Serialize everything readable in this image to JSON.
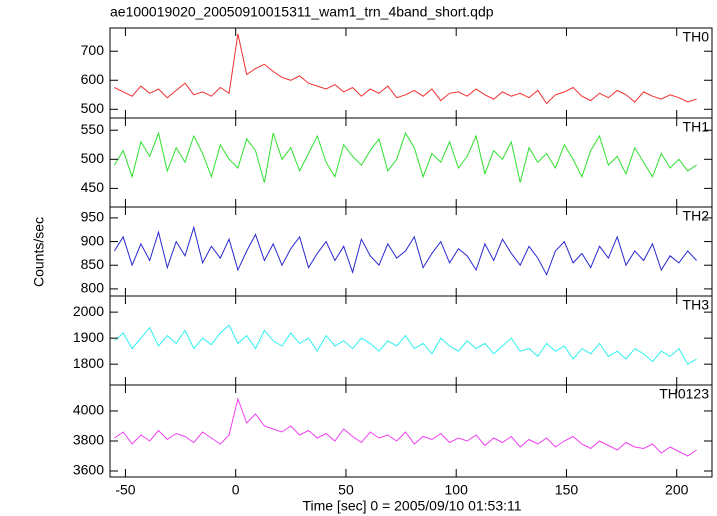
{
  "title": "ae100019020_20050910015311_wam1_trn_4band_short.qdp",
  "xlabel": "Time [sec] 0 = 2005/09/10 01:53:11",
  "ylabel": "Counts/sec",
  "x": [
    -55,
    -51,
    -47,
    -43,
    -39,
    -35,
    -31,
    -27,
    -23,
    -19,
    -15,
    -11,
    -7,
    -3,
    1,
    5,
    9,
    13,
    17,
    21,
    25,
    29,
    33,
    37,
    41,
    45,
    49,
    53,
    57,
    61,
    65,
    69,
    73,
    77,
    81,
    85,
    89,
    93,
    97,
    101,
    105,
    109,
    113,
    117,
    121,
    125,
    129,
    133,
    137,
    141,
    145,
    149,
    153,
    157,
    161,
    165,
    169,
    173,
    177,
    181,
    185,
    189,
    193,
    197,
    201,
    205,
    209
  ],
  "xlim": [
    -57,
    216
  ],
  "xticks": [
    -50,
    0,
    50,
    100,
    150,
    200
  ],
  "chart_data": [
    {
      "type": "line",
      "label": "TH0",
      "color": "#f03030",
      "ylim": [
        470,
        780
      ],
      "yticks": [
        500,
        600,
        700
      ],
      "values": [
        575,
        560,
        545,
        580,
        555,
        570,
        540,
        565,
        590,
        550,
        560,
        545,
        575,
        555,
        760,
        620,
        640,
        655,
        630,
        610,
        600,
        615,
        590,
        580,
        570,
        585,
        560,
        575,
        545,
        570,
        555,
        580,
        540,
        550,
        565,
        545,
        570,
        530,
        555,
        560,
        545,
        570,
        550,
        535,
        560,
        545,
        555,
        540,
        565,
        520,
        550,
        560,
        575,
        545,
        530,
        555,
        540,
        565,
        550,
        525,
        560,
        545,
        535,
        550,
        540,
        525,
        535
      ]
    },
    {
      "type": "line",
      "label": "TH1",
      "color": "#30e030",
      "ylim": [
        418,
        571
      ],
      "yticks": [
        450,
        500,
        550
      ],
      "values": [
        490,
        515,
        470,
        530,
        505,
        545,
        480,
        520,
        495,
        540,
        510,
        470,
        525,
        500,
        485,
        535,
        515,
        460,
        545,
        500,
        520,
        480,
        510,
        540,
        495,
        470,
        525,
        505,
        490,
        515,
        535,
        480,
        500,
        545,
        520,
        470,
        510,
        495,
        530,
        485,
        505,
        540,
        475,
        515,
        500,
        530,
        460,
        520,
        495,
        510,
        485,
        525,
        500,
        470,
        515,
        540,
        490,
        505,
        475,
        520,
        495,
        470,
        510,
        485,
        500,
        480,
        490
      ]
    },
    {
      "type": "line",
      "label": "TH2",
      "color": "#2828d0",
      "ylim": [
        785,
        973
      ],
      "yticks": [
        800,
        850,
        900,
        950
      ],
      "values": [
        880,
        910,
        850,
        895,
        860,
        920,
        845,
        900,
        870,
        930,
        855,
        890,
        865,
        905,
        840,
        880,
        915,
        860,
        895,
        850,
        885,
        910,
        845,
        875,
        900,
        860,
        890,
        835,
        905,
        870,
        850,
        895,
        865,
        880,
        910,
        845,
        875,
        900,
        855,
        885,
        870,
        840,
        895,
        860,
        905,
        875,
        850,
        890,
        865,
        830,
        880,
        900,
        855,
        875,
        845,
        890,
        865,
        910,
        850,
        880,
        860,
        895,
        840,
        870,
        855,
        880,
        860
      ]
    },
    {
      "type": "line",
      "label": "TH3",
      "color": "#30f0f0",
      "ylim": [
        1720,
        2062
      ],
      "yticks": [
        1800,
        1900,
        2000
      ],
      "values": [
        1890,
        1920,
        1860,
        1900,
        1940,
        1870,
        1910,
        1880,
        1930,
        1860,
        1900,
        1875,
        1920,
        1950,
        1880,
        1910,
        1860,
        1930,
        1890,
        1870,
        1920,
        1880,
        1900,
        1850,
        1910,
        1870,
        1890,
        1860,
        1900,
        1880,
        1850,
        1890,
        1870,
        1910,
        1860,
        1880,
        1840,
        1900,
        1870,
        1850,
        1890,
        1860,
        1880,
        1840,
        1870,
        1900,
        1850,
        1860,
        1830,
        1880,
        1850,
        1870,
        1820,
        1860,
        1840,
        1880,
        1830,
        1850,
        1820,
        1860,
        1840,
        1810,
        1850,
        1830,
        1860,
        1800,
        1820
      ]
    },
    {
      "type": "line",
      "label": "TH0123",
      "color": "#f040f0",
      "ylim": [
        3560,
        4173
      ],
      "yticks": [
        3600,
        3800,
        4000
      ],
      "values": [
        3820,
        3860,
        3780,
        3840,
        3800,
        3870,
        3810,
        3850,
        3830,
        3790,
        3860,
        3820,
        3780,
        3840,
        4080,
        3920,
        3980,
        3900,
        3880,
        3860,
        3900,
        3840,
        3870,
        3820,
        3850,
        3800,
        3880,
        3830,
        3790,
        3860,
        3820,
        3840,
        3800,
        3860,
        3780,
        3830,
        3810,
        3850,
        3790,
        3820,
        3800,
        3840,
        3770,
        3820,
        3790,
        3830,
        3760,
        3810,
        3780,
        3820,
        3760,
        3800,
        3830,
        3780,
        3750,
        3800,
        3770,
        3740,
        3790,
        3760,
        3750,
        3780,
        3720,
        3760,
        3730,
        3700,
        3740
      ]
    }
  ]
}
